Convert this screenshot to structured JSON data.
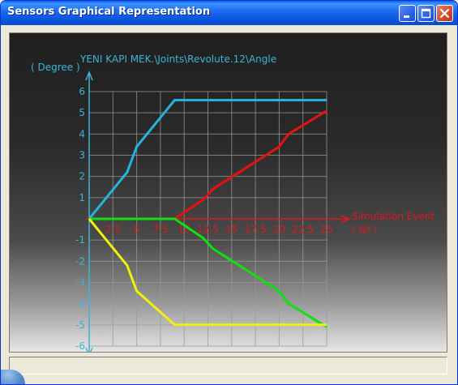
{
  "window": {
    "title": "Sensors Graphical Representation",
    "buttons": {
      "minimize": "minimize-icon",
      "maximize": "maximize-icon",
      "close": "close-icon"
    }
  },
  "status": "",
  "colors": {
    "axis": "#3cb4d8",
    "x_axis": "#e01818",
    "grid": "#9a9a9a",
    "series": [
      "#22b4dc",
      "#e81010",
      "#10e010",
      "#f0f010"
    ]
  },
  "chart_data": {
    "type": "line",
    "title": "YENI KAPI MEK.\\Joints\\Revolute.12\\Angle",
    "ylabel": "( Degree )",
    "xlabel": "Simulation Event",
    "xunit": "( Nº )",
    "xlim": [
      0,
      25
    ],
    "ylim": [
      -6,
      6
    ],
    "x_ticks": [
      "2.5",
      "5",
      "7.5",
      "10",
      "12.5",
      "15",
      "17.5",
      "20",
      "22.5",
      "25"
    ],
    "y_ticks": [
      "6",
      "5",
      "4",
      "3",
      "2",
      "1",
      "-1",
      "-2",
      "-3",
      "-4",
      "-5",
      "-6"
    ],
    "x_tick_values": [
      2.5,
      5,
      7.5,
      10,
      12.5,
      15,
      17.5,
      20,
      22.5,
      25
    ],
    "y_tick_values": [
      6,
      5,
      4,
      3,
      2,
      1,
      -1,
      -2,
      -3,
      -4,
      -5,
      -6
    ],
    "grid": true,
    "series": [
      {
        "color": "#22b4dc",
        "points": [
          [
            0,
            0
          ],
          [
            4,
            2.2
          ],
          [
            5,
            3.4
          ],
          [
            9,
            5.6
          ],
          [
            25,
            5.6
          ]
        ]
      },
      {
        "color": "#e81010",
        "points": [
          [
            0,
            0
          ],
          [
            9,
            0
          ],
          [
            12,
            0.9
          ],
          [
            13,
            1.4
          ],
          [
            20,
            3.4
          ],
          [
            21,
            4.0
          ],
          [
            25,
            5.1
          ]
        ]
      },
      {
        "color": "#10e010",
        "points": [
          [
            0,
            0
          ],
          [
            9,
            0
          ],
          [
            12,
            -0.9
          ],
          [
            13,
            -1.4
          ],
          [
            20,
            -3.4
          ],
          [
            21,
            -4.0
          ],
          [
            25,
            -5.1
          ]
        ]
      },
      {
        "color": "#f0f010",
        "points": [
          [
            0,
            0
          ],
          [
            4,
            -2.2
          ],
          [
            5,
            -3.4
          ],
          [
            9,
            -5
          ],
          [
            25,
            -5
          ]
        ]
      }
    ]
  }
}
